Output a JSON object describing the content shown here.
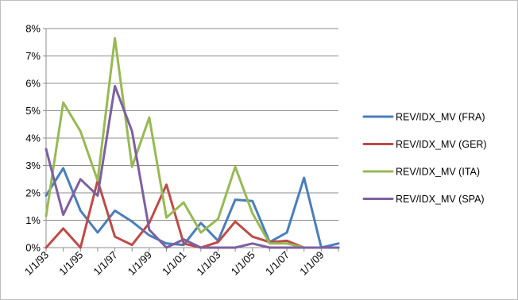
{
  "chart_data": {
    "type": "line",
    "title": "",
    "xlabel": "",
    "ylabel": "",
    "ylim": [
      0,
      0.08
    ],
    "y_ticks": [
      "0%",
      "1%",
      "2%",
      "3%",
      "4%",
      "5%",
      "6%",
      "7%",
      "8%"
    ],
    "x_tick_labels": [
      "1/1/93",
      "1/1/95",
      "1/1/97",
      "1/1/99",
      "1/1/01",
      "1/1/03",
      "1/1/05",
      "1/1/07",
      "1/1/09"
    ],
    "x": [
      "1/1/93",
      "1/1/94",
      "1/1/95",
      "1/1/96",
      "1/1/97",
      "1/1/98",
      "1/1/99",
      "1/1/00",
      "1/1/01",
      "1/1/02",
      "1/1/03",
      "1/1/04",
      "1/1/05",
      "1/1/06",
      "1/1/07",
      "1/1/08",
      "1/1/09",
      "1/1/10"
    ],
    "grid": "horizontal",
    "legend": "right",
    "series": [
      {
        "name": "REV/IDX_MV (FRA)",
        "color": "#4a7ebb",
        "values": [
          0.019,
          0.029,
          0.0135,
          0.0055,
          0.0135,
          0.0095,
          0.0045,
          0.0015,
          0.001,
          0.009,
          0.0025,
          0.0175,
          0.017,
          0.002,
          0.0055,
          0.0255,
          0.0,
          0.0015
        ]
      },
      {
        "name": "REV/IDX_MV (GER)",
        "color": "#be4b48",
        "values": [
          0.0,
          0.007,
          0.0,
          0.0245,
          0.004,
          0.001,
          0.009,
          0.023,
          0.0015,
          0.0,
          0.002,
          0.0095,
          0.004,
          0.002,
          0.0025,
          0.0,
          0.0,
          0.0
        ]
      },
      {
        "name": "REV/IDX_MV (ITA)",
        "color": "#98b954",
        "values": [
          0.0115,
          0.053,
          0.0425,
          0.0245,
          0.0765,
          0.0295,
          0.0475,
          0.011,
          0.0165,
          0.0055,
          0.0105,
          0.0295,
          0.0125,
          0.0015,
          0.0015,
          0.0,
          0.0,
          0.0
        ]
      },
      {
        "name": "REV/IDX_MV (SPA)",
        "color": "#7d60a0",
        "values": [
          0.036,
          0.012,
          0.025,
          0.019,
          0.059,
          0.0425,
          0.0065,
          0.0,
          0.003,
          0.0,
          0.0,
          0.0,
          0.0015,
          0.0,
          0.0,
          0.0,
          0.0,
          0.0
        ]
      }
    ]
  }
}
